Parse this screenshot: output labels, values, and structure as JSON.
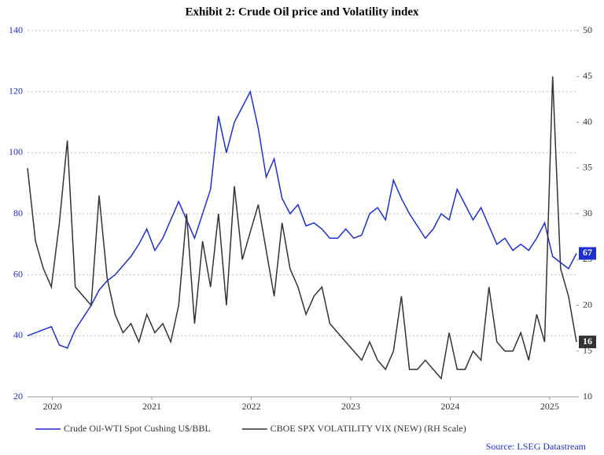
{
  "chart_data": {
    "type": "line",
    "title": "Exhibit 2: Crude Oil price and Volatility index",
    "source": "Source: LSEG Datastream",
    "x": [
      2019.75,
      2019.83,
      2019.91,
      2019.99,
      2020.07,
      2020.15,
      2020.23,
      2020.31,
      2020.39,
      2020.47,
      2020.55,
      2020.63,
      2020.71,
      2020.79,
      2020.87,
      2020.95,
      2021.03,
      2021.11,
      2021.19,
      2021.27,
      2021.35,
      2021.43,
      2021.51,
      2021.59,
      2021.67,
      2021.75,
      2021.83,
      2021.91,
      2021.99,
      2022.07,
      2022.15,
      2022.23,
      2022.31,
      2022.39,
      2022.47,
      2022.55,
      2022.63,
      2022.71,
      2022.79,
      2022.87,
      2022.95,
      2023.03,
      2023.11,
      2023.19,
      2023.27,
      2023.35,
      2023.43,
      2023.51,
      2023.59,
      2023.67,
      2023.75,
      2023.83,
      2023.91,
      2023.99,
      2024.07,
      2024.15,
      2024.23,
      2024.31,
      2024.39,
      2024.47,
      2024.55,
      2024.63,
      2024.71,
      2024.79,
      2024.87,
      2024.95,
      2025.03,
      2025.11,
      2025.19,
      2025.27
    ],
    "xlim": [
      2019.75,
      2025.27
    ],
    "xticks": [
      2020,
      2021,
      2022,
      2023,
      2024,
      2025
    ],
    "ylim": [
      20,
      140
    ],
    "yticks": [
      20,
      40,
      60,
      80,
      100,
      120,
      140
    ],
    "y2lim": [
      10,
      50
    ],
    "y2ticks": [
      10,
      15,
      20,
      25,
      30,
      35,
      40,
      45,
      50
    ],
    "grid": true,
    "series": [
      {
        "name": "Crude Oil-WTI Spot Cushing U$/BBL",
        "color": "#1f2fd0",
        "axis": "y",
        "values": [
          40,
          41,
          42,
          43,
          37,
          36,
          42,
          46,
          50,
          55,
          58,
          60,
          63,
          66,
          70,
          75,
          68,
          72,
          78,
          84,
          78,
          72,
          80,
          88,
          112,
          100,
          110,
          115,
          120,
          108,
          92,
          98,
          85,
          80,
          83,
          76,
          77,
          75,
          72,
          72,
          75,
          72,
          73,
          80,
          82,
          78,
          91,
          85,
          80,
          76,
          72,
          75,
          80,
          78,
          88,
          83,
          78,
          82,
          76,
          70,
          72,
          68,
          70,
          68,
          72,
          77,
          66,
          64,
          62,
          67
        ]
      },
      {
        "name": "CBOE SPX VOLATILITY VIX (NEW) (RH Scale)",
        "color": "#333333",
        "axis": "y2",
        "values": [
          35,
          27,
          24,
          22,
          29,
          38,
          22,
          21,
          20,
          32,
          23,
          19,
          17,
          18,
          16,
          19,
          17,
          18,
          16,
          20,
          30,
          18,
          27,
          22,
          30,
          20,
          33,
          25,
          28,
          31,
          26,
          21,
          29,
          24,
          22,
          19,
          21,
          22,
          18,
          17,
          16,
          15,
          14,
          16,
          14,
          13,
          15,
          21,
          13,
          13,
          14,
          13,
          12,
          17,
          13,
          13,
          15,
          14,
          22,
          16,
          15,
          15,
          17,
          14,
          19,
          16,
          45,
          24,
          21,
          16
        ]
      }
    ]
  }
}
